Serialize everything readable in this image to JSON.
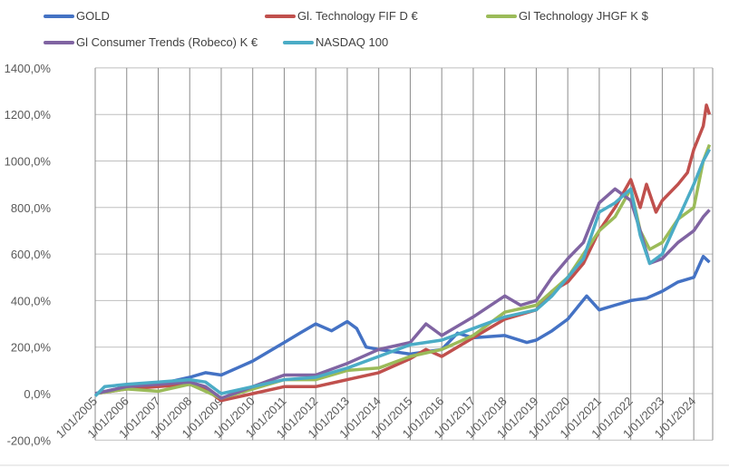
{
  "chart_data": {
    "type": "line",
    "title": "",
    "xlabel": "",
    "ylabel": "",
    "xlim": [
      2005,
      2024.6
    ],
    "ylim": [
      -200,
      1400
    ],
    "grid": true,
    "legend_position": "top",
    "y_ticks": [
      -200,
      0,
      200,
      400,
      600,
      800,
      1000,
      1200,
      1400
    ],
    "y_tick_labels": [
      "-200,0%",
      "0,0%",
      "200,0%",
      "400,0%",
      "600,0%",
      "800,0%",
      "1000,0%",
      "1200,0%",
      "1400,0%"
    ],
    "x_ticks": [
      2005,
      2006,
      2007,
      2008,
      2009,
      2010,
      2011,
      2012,
      2013,
      2014,
      2015,
      2016,
      2017,
      2018,
      2019,
      2020,
      2021,
      2022,
      2023,
      2024
    ],
    "x_tick_labels": [
      "1/01/2005",
      "1/01/2006",
      "1/01/2007",
      "1/01/2008",
      "1/01/2009",
      "1/01/2010",
      "1/01/2011",
      "1/01/2012",
      "1/01/2013",
      "1/01/2014",
      "1/01/2015",
      "1/01/2016",
      "1/01/2017",
      "1/01/2018",
      "1/01/2019",
      "1/01/2020",
      "1/01/2021",
      "1/01/2022",
      "1/01/2023",
      "1/01/2024"
    ],
    "series": [
      {
        "name": "GOLD",
        "color": "#4472C4",
        "x": [
          2005,
          2006,
          2007,
          2008,
          2008.5,
          2009,
          2009.5,
          2010,
          2011,
          2011.5,
          2012,
          2012.5,
          2013,
          2013.3,
          2013.6,
          2014,
          2015,
          2016,
          2016.5,
          2017,
          2018,
          2018.7,
          2019,
          2019.5,
          2020,
          2020.6,
          2021,
          2021.5,
          2022,
          2022.5,
          2023,
          2023.5,
          2024,
          2024.3,
          2024.5
        ],
        "y": [
          0,
          30,
          40,
          70,
          90,
          80,
          110,
          140,
          220,
          260,
          300,
          270,
          310,
          280,
          200,
          190,
          170,
          190,
          260,
          240,
          250,
          220,
          230,
          270,
          320,
          420,
          360,
          380,
          400,
          410,
          440,
          480,
          500,
          590,
          565
        ]
      },
      {
        "name": "Gl. Technology FIF D €",
        "color": "#C0504D",
        "x": [
          2005,
          2006,
          2007,
          2008,
          2008.5,
          2009,
          2010,
          2011,
          2012,
          2013,
          2014,
          2015,
          2015.5,
          2016,
          2017,
          2018,
          2019,
          2019.5,
          2020,
          2020.5,
          2021,
          2021.5,
          2022,
          2022.3,
          2022.5,
          2022.8,
          2023,
          2023.5,
          2023.8,
          2024,
          2024.3,
          2024.4,
          2024.5
        ],
        "y": [
          0,
          20,
          30,
          40,
          20,
          -30,
          0,
          30,
          30,
          60,
          90,
          150,
          190,
          160,
          240,
          320,
          360,
          440,
          480,
          560,
          700,
          800,
          920,
          800,
          900,
          780,
          830,
          900,
          950,
          1050,
          1150,
          1240,
          1200
        ]
      },
      {
        "name": "Gl Technology JHGF K $",
        "color": "#9BBB59",
        "x": [
          2005,
          2006,
          2007,
          2008,
          2008.5,
          2009,
          2010,
          2011,
          2012,
          2013,
          2014,
          2015,
          2016,
          2017,
          2018,
          2019,
          2020,
          2020.5,
          2021,
          2021.5,
          2022,
          2022.3,
          2022.6,
          2023,
          2023.5,
          2024,
          2024.3,
          2024.5
        ],
        "y": [
          0,
          20,
          10,
          40,
          10,
          -20,
          20,
          60,
          60,
          100,
          110,
          160,
          190,
          250,
          350,
          380,
          500,
          600,
          700,
          760,
          880,
          700,
          620,
          650,
          750,
          800,
          1000,
          1070
        ]
      },
      {
        "name": "Gl Consumer Trends (Robeco) K €",
        "color": "#8064A2",
        "x": [
          2005,
          2006,
          2007,
          2008,
          2008.5,
          2009,
          2010,
          2011,
          2012,
          2013,
          2014,
          2015,
          2015.5,
          2016,
          2017,
          2018,
          2018.5,
          2019,
          2019.5,
          2020,
          2020.5,
          2021,
          2021.5,
          2022,
          2022.3,
          2022.6,
          2023,
          2023.5,
          2024,
          2024.3,
          2024.5
        ],
        "y": [
          0,
          30,
          40,
          50,
          30,
          -20,
          30,
          80,
          80,
          130,
          190,
          220,
          300,
          250,
          330,
          420,
          380,
          400,
          500,
          580,
          650,
          820,
          880,
          830,
          700,
          560,
          580,
          650,
          700,
          760,
          790
        ]
      },
      {
        "name": "NASDAQ 100",
        "color": "#4BACC6",
        "x": [
          2005,
          2005.3,
          2006,
          2007,
          2008,
          2008.5,
          2009,
          2010,
          2011,
          2012,
          2013,
          2014,
          2015,
          2016,
          2017,
          2018,
          2019,
          2019.5,
          2020,
          2020.5,
          2021,
          2021.5,
          2022,
          2022.3,
          2022.6,
          2023,
          2023.5,
          2024,
          2024.3,
          2024.5
        ],
        "y": [
          -10,
          30,
          40,
          50,
          60,
          50,
          0,
          30,
          60,
          70,
          110,
          160,
          210,
          230,
          280,
          330,
          360,
          420,
          500,
          580,
          780,
          820,
          880,
          680,
          560,
          600,
          750,
          900,
          1000,
          1050
        ]
      }
    ]
  }
}
